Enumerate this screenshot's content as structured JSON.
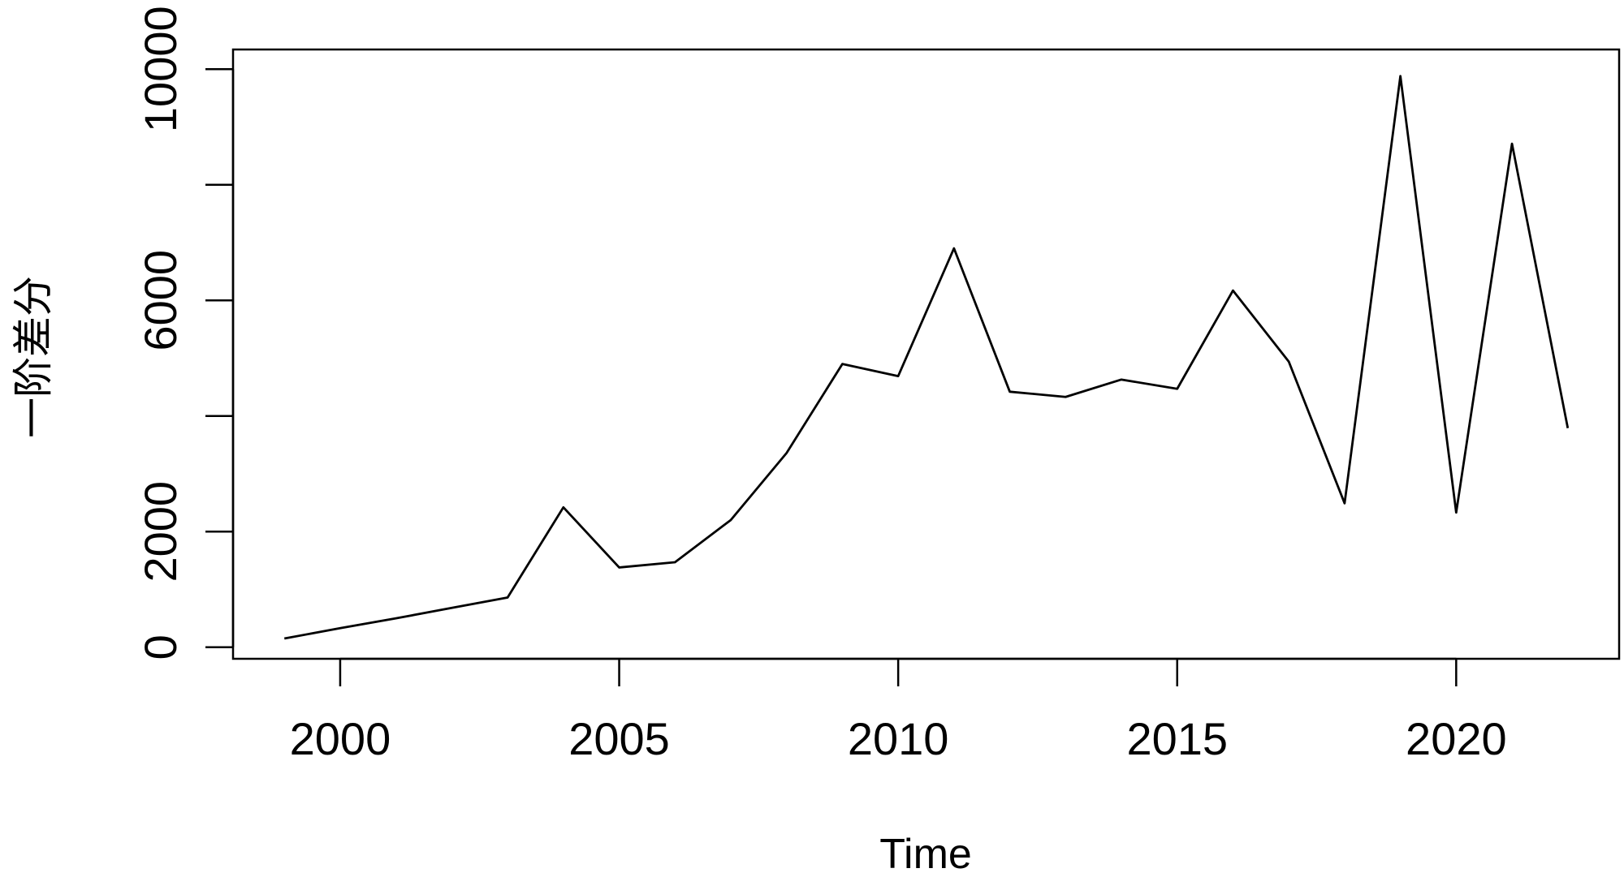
{
  "chart_data": {
    "type": "line",
    "xlabel": "Time",
    "ylabel": "一阶差分",
    "x": [
      1999,
      2000,
      2001,
      2002,
      2003,
      2004,
      2005,
      2006,
      2007,
      2008,
      2009,
      2010,
      2011,
      2012,
      2013,
      2014,
      2015,
      2016,
      2017,
      2018,
      2019,
      2020,
      2021,
      2022
    ],
    "values": [
      150,
      330,
      500,
      680,
      860,
      2420,
      1380,
      1470,
      2200,
      3360,
      4900,
      4690,
      6900,
      4420,
      4330,
      4630,
      4470,
      6170,
      4940,
      2490,
      9880,
      2330,
      8710,
      3790
    ],
    "color": "#000000",
    "xlim": [
      1998.08,
      2022.92
    ],
    "ylim": [
      -200,
      10340
    ],
    "xticks": [
      2000,
      2005,
      2010,
      2015,
      2020
    ],
    "yticks": [
      0,
      2000,
      4000,
      6000,
      8000,
      10000
    ],
    "grid": false
  }
}
